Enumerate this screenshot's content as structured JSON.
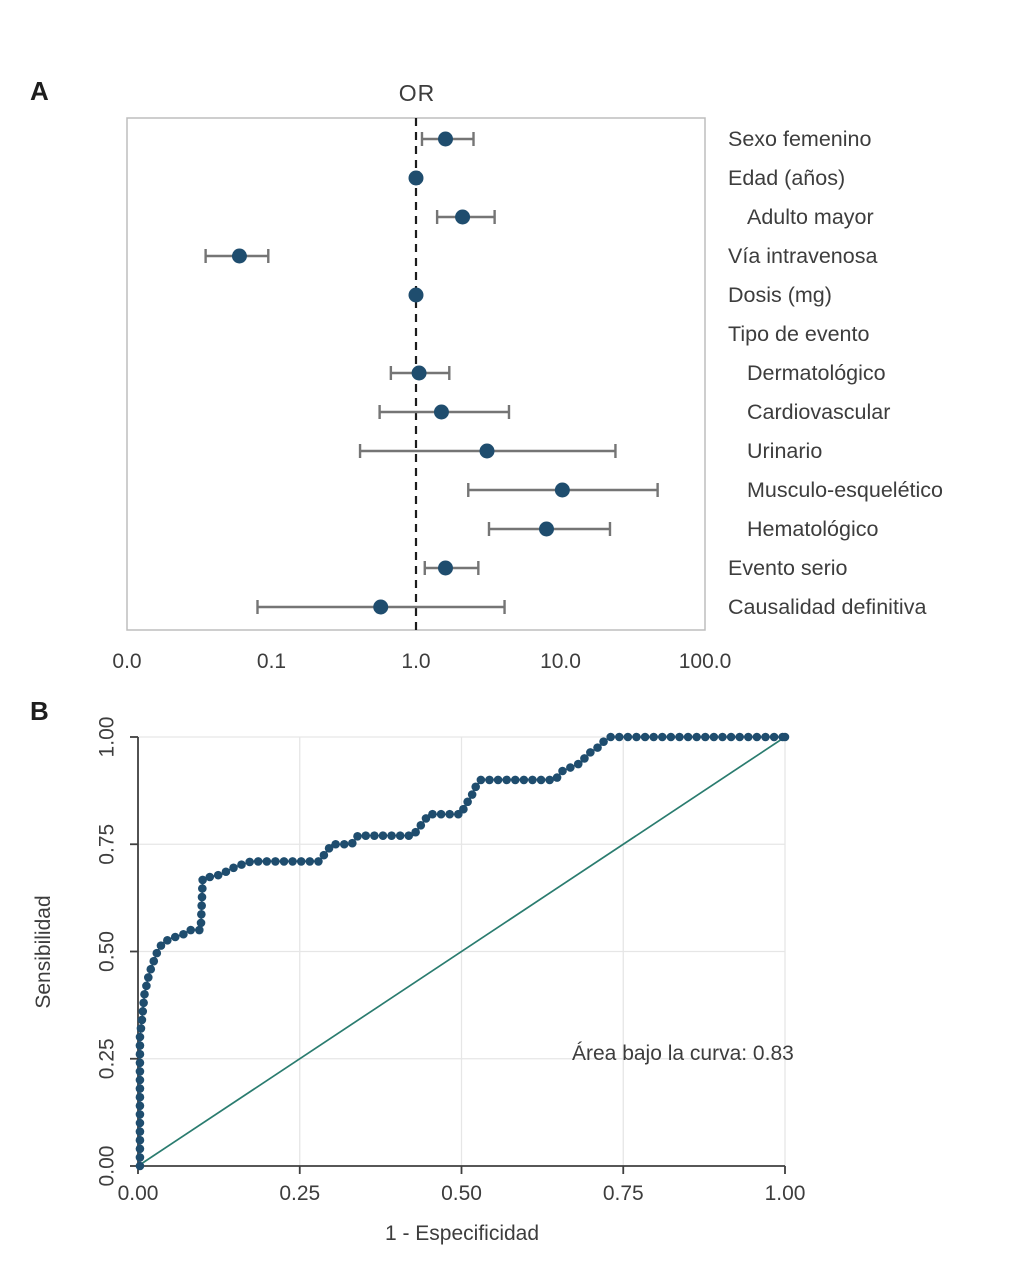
{
  "style": {
    "navy": "#1f4d6e",
    "teal": "#2a7c6f",
    "ci_gray": "#757575",
    "grid": "#e6e6e6",
    "box_border": "#bdbdbd",
    "axis": "#3f3f3f",
    "text": "#3d3d3d",
    "background": "#ffffff"
  },
  "chart_data": [
    {
      "type": "scatter",
      "subtype": "forest-plot",
      "panel_label": "A",
      "title": "OR",
      "x_scale": "log",
      "x_axis_min": 0.01,
      "x_axis_max": 100,
      "x_ticks": [
        0.01,
        0.1,
        1,
        10,
        100
      ],
      "x_tick_labels": [
        "0.0",
        "0.1",
        "1.0",
        "10.0",
        "100.0"
      ],
      "reference_line": 1.0,
      "rows": [
        {
          "label": "Sexo femenino",
          "indent": false,
          "or": 1.6,
          "ci_low": 1.1,
          "ci_high": 2.5
        },
        {
          "label": "Edad (años)",
          "indent": false,
          "or": 1.0,
          "ci_low": 0.97,
          "ci_high": 1.04
        },
        {
          "label": "Adulto mayor",
          "indent": true,
          "or": 2.1,
          "ci_low": 1.4,
          "ci_high": 3.5
        },
        {
          "label": "Vía intravenosa",
          "indent": false,
          "or": 0.06,
          "ci_low": 0.035,
          "ci_high": 0.095
        },
        {
          "label": "Dosis (mg)",
          "indent": false,
          "or": 1.0,
          "ci_low": 0.99,
          "ci_high": 1.01
        },
        {
          "label": "Tipo de evento",
          "indent": false,
          "or": null,
          "ci_low": null,
          "ci_high": null
        },
        {
          "label": "Dermatológico",
          "indent": true,
          "or": 1.05,
          "ci_low": 0.67,
          "ci_high": 1.7
        },
        {
          "label": "Cardiovascular",
          "indent": true,
          "or": 1.5,
          "ci_low": 0.56,
          "ci_high": 4.4
        },
        {
          "label": "Urinario",
          "indent": true,
          "or": 3.1,
          "ci_low": 0.41,
          "ci_high": 24
        },
        {
          "label": "Musculo-esquelético",
          "indent": true,
          "or": 10.3,
          "ci_low": 2.3,
          "ci_high": 47
        },
        {
          "label": "Hematológico",
          "indent": true,
          "or": 8.0,
          "ci_low": 3.2,
          "ci_high": 22
        },
        {
          "label": "Evento serio",
          "indent": false,
          "or": 1.6,
          "ci_low": 1.15,
          "ci_high": 2.7
        },
        {
          "label": "Causalidad definitiva",
          "indent": false,
          "or": 0.57,
          "ci_low": 0.08,
          "ci_high": 4.1
        }
      ]
    },
    {
      "type": "line",
      "subtype": "roc-curve",
      "panel_label": "B",
      "xlabel": "1 - Especificidad",
      "ylabel": "Sensibilidad",
      "annotation": "Área bajo la curva: 0.83",
      "auc": 0.83,
      "xlim": [
        0,
        1
      ],
      "ylim": [
        0,
        1
      ],
      "x_ticks": [
        0,
        0.25,
        0.5,
        0.75,
        1
      ],
      "x_tick_labels": [
        "0.00",
        "0.25",
        "0.50",
        "0.75",
        "1.00"
      ],
      "y_ticks": [
        0,
        0.25,
        0.5,
        0.75,
        1
      ],
      "y_tick_labels": [
        "0.00",
        "0.25",
        "0.50",
        "0.75",
        "1.00"
      ],
      "diagonal_reference": true,
      "grid": true,
      "roc_points": [
        [
          0.003,
          0.0
        ],
        [
          0.003,
          0.3
        ],
        [
          0.006,
          0.34
        ],
        [
          0.008,
          0.37
        ],
        [
          0.01,
          0.4
        ],
        [
          0.013,
          0.42
        ],
        [
          0.016,
          0.44
        ],
        [
          0.02,
          0.46
        ],
        [
          0.025,
          0.48
        ],
        [
          0.03,
          0.5
        ],
        [
          0.038,
          0.52
        ],
        [
          0.05,
          0.53
        ],
        [
          0.07,
          0.54
        ],
        [
          0.08,
          0.55
        ],
        [
          0.097,
          0.55
        ],
        [
          0.1,
          0.67
        ],
        [
          0.13,
          0.68
        ],
        [
          0.14,
          0.69
        ],
        [
          0.155,
          0.7
        ],
        [
          0.175,
          0.71
        ],
        [
          0.28,
          0.71
        ],
        [
          0.29,
          0.73
        ],
        [
          0.3,
          0.75
        ],
        [
          0.33,
          0.75
        ],
        [
          0.34,
          0.77
        ],
        [
          0.425,
          0.77
        ],
        [
          0.435,
          0.79
        ],
        [
          0.445,
          0.81
        ],
        [
          0.45,
          0.82
        ],
        [
          0.5,
          0.82
        ],
        [
          0.505,
          0.84
        ],
        [
          0.515,
          0.86
        ],
        [
          0.52,
          0.88
        ],
        [
          0.53,
          0.9
        ],
        [
          0.645,
          0.9
        ],
        [
          0.655,
          0.92
        ],
        [
          0.67,
          0.93
        ],
        [
          0.685,
          0.94
        ],
        [
          0.695,
          0.96
        ],
        [
          0.705,
          0.97
        ],
        [
          0.715,
          0.98
        ],
        [
          0.72,
          0.99
        ],
        [
          0.73,
          1.0
        ],
        [
          1.0,
          1.0
        ]
      ]
    }
  ]
}
